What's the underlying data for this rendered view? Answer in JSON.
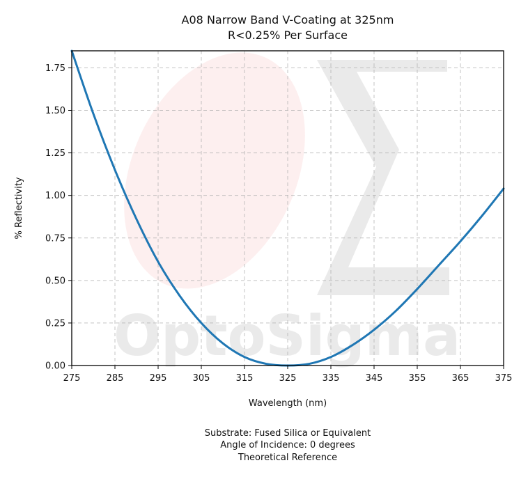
{
  "chart_data": {
    "type": "line",
    "title": "A08 Narrow Band V-Coating at 325nm",
    "subtitle": "R<0.25% Per Surface",
    "xlabel": "Wavelength (nm)",
    "ylabel": "% Reflectivity",
    "xlim": [
      275,
      375
    ],
    "ylim": [
      0,
      1.85
    ],
    "xticks": [
      275,
      285,
      295,
      305,
      315,
      325,
      335,
      345,
      355,
      365,
      375
    ],
    "yticks": [
      "0.00",
      "0.25",
      "0.50",
      "0.75",
      "1.00",
      "1.25",
      "1.50",
      "1.75"
    ],
    "grid": true,
    "series": [
      {
        "color": "#1f77b4",
        "x": [
          275,
          280,
          285,
          290,
          295,
          300,
          305,
          310,
          315,
          320,
          325,
          330,
          335,
          340,
          345,
          350,
          355,
          360,
          365,
          370,
          375
        ],
        "y": [
          1.85,
          1.48,
          1.15,
          0.86,
          0.61,
          0.41,
          0.25,
          0.13,
          0.05,
          0.01,
          0.0,
          0.01,
          0.05,
          0.12,
          0.21,
          0.32,
          0.45,
          0.59,
          0.73,
          0.88,
          1.04
        ]
      }
    ],
    "watermark": "OptoSigma"
  },
  "footer": {
    "line1": "Substrate: Fused Silica or Equivalent",
    "line2": "Angle of Incidence: 0 degrees",
    "line3": "Theoretical Reference"
  }
}
